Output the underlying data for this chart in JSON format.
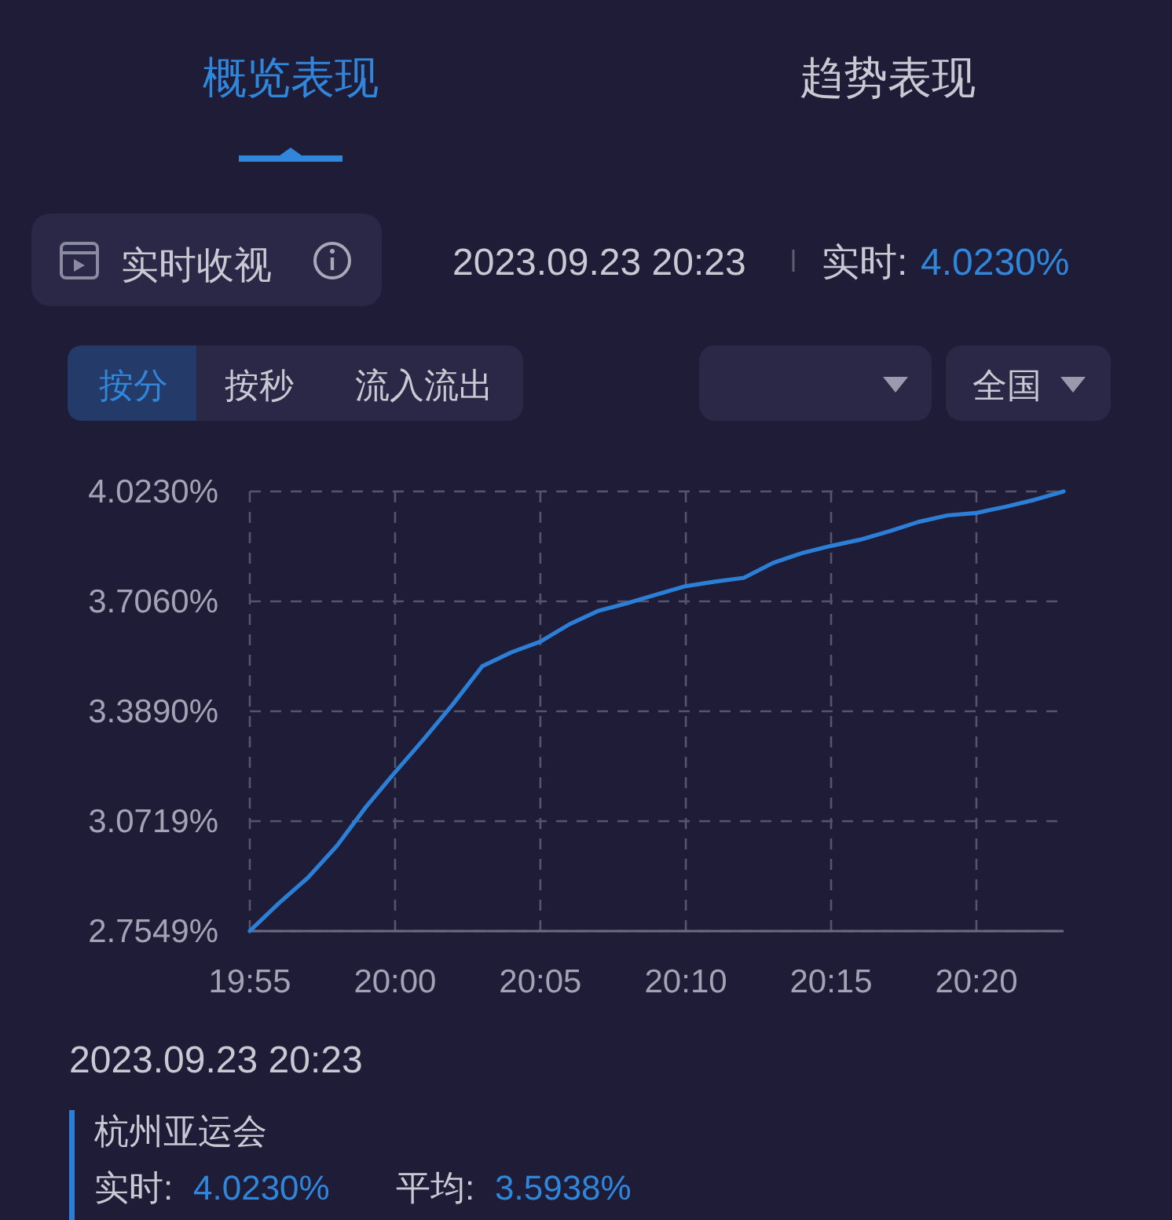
{
  "chart_data": {
    "type": "line",
    "title": "实时收视",
    "x": [
      19.9167,
      19.9333,
      19.95,
      19.9667,
      19.9833,
      20,
      20.0167,
      20.0333,
      20.05,
      20.0667,
      20.0833,
      20.1,
      20.1167,
      20.1333,
      20.15,
      20.1667,
      20.1833,
      20.2,
      20.2167,
      20.2333,
      20.25,
      20.2667,
      20.2833,
      20.3,
      20.3167,
      20.3333,
      20.35,
      20.3667,
      20.3833
    ],
    "series": [
      {
        "name": "杭州亚运会",
        "color": "#2b7fd6",
        "values": [
          2.755,
          2.835,
          2.909,
          3.001,
          3.113,
          3.213,
          3.31,
          3.41,
          3.519,
          3.559,
          3.59,
          3.64,
          3.679,
          3.701,
          3.726,
          3.75,
          3.763,
          3.774,
          3.817,
          3.845,
          3.866,
          3.884,
          3.908,
          3.935,
          3.954,
          3.961,
          3.979,
          3.999,
          4.023
        ]
      }
    ],
    "xlim": [
      19.9167,
      20.3833
    ],
    "xticks": [
      {
        "value": 19.9167,
        "label": "19:55"
      },
      {
        "value": 20,
        "label": "20:00"
      },
      {
        "value": 20.0833,
        "label": "20:05"
      },
      {
        "value": 20.1667,
        "label": "20:10"
      },
      {
        "value": 20.25,
        "label": "20:15"
      },
      {
        "value": 20.3333,
        "label": "20:20"
      }
    ],
    "ylim": [
      2.7549,
      4.023
    ],
    "yticks": [
      {
        "value": 2.7549,
        "label": "2.7549%"
      },
      {
        "value": 3.0719,
        "label": "3.0719%"
      },
      {
        "value": 3.389,
        "label": "3.3890%"
      },
      {
        "value": 3.706,
        "label": "3.7060%"
      },
      {
        "value": 4.023,
        "label": "4.0230%"
      }
    ],
    "grid": true,
    "legend": "bottom",
    "annotations": [
      "概览表现",
      "趋势表现",
      "2023.09.23 20:23",
      "实时:",
      "4.0230%",
      "按分",
      "按秒",
      "流入流出",
      "全国",
      "2023.09.23 20:23",
      "实时:",
      "4.0230%",
      "平均:",
      "3.5938%"
    ]
  }
}
